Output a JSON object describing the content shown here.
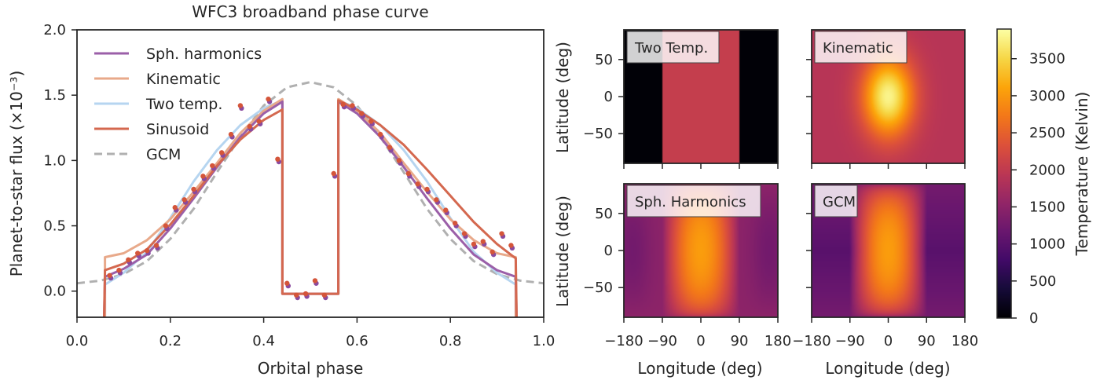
{
  "chart_data": [
    {
      "type": "line",
      "title": "WFC3 broadband phase curve",
      "xlabel": "Orbital phase",
      "ylabel": "Planet-to-star flux (×10⁻³)",
      "xlim": [
        0.0,
        1.0
      ],
      "ylim": [
        -0.2,
        2.0
      ],
      "xticks": [
        "0.0",
        "0.2",
        "0.4",
        "0.6",
        "0.8",
        "1.0"
      ],
      "yticks": [
        "0.0",
        "0.5",
        "1.0",
        "1.5",
        "2.0"
      ],
      "legend_position": "upper-left",
      "series": [
        {
          "name": "Sph. harmonics",
          "color": "#9b5fa8",
          "style": "solid",
          "x": [
            0.058,
            0.06,
            0.1,
            0.15,
            0.2,
            0.25,
            0.3,
            0.35,
            0.4,
            0.44,
            0.44,
            0.46,
            0.54,
            0.56,
            0.56,
            0.6,
            0.65,
            0.7,
            0.75,
            0.8,
            0.85,
            0.9,
            0.94,
            0.94,
            0.942
          ],
          "y": [
            -0.2,
            0.11,
            0.17,
            0.28,
            0.48,
            0.71,
            0.95,
            1.18,
            1.36,
            1.45,
            -0.02,
            -0.02,
            -0.02,
            -0.02,
            1.45,
            1.36,
            1.18,
            0.95,
            0.71,
            0.48,
            0.28,
            0.16,
            0.11,
            0.11,
            -0.2
          ]
        },
        {
          "name": "Kinematic",
          "color": "#e8a98a",
          "style": "solid",
          "x": [
            0.06,
            0.06,
            0.1,
            0.15,
            0.2,
            0.25,
            0.3,
            0.35,
            0.4,
            0.44,
            0.44,
            0.46,
            0.54,
            0.56,
            0.56,
            0.6,
            0.65,
            0.7,
            0.75,
            0.8,
            0.85,
            0.9,
            0.94,
            0.94
          ],
          "y": [
            -0.2,
            0.26,
            0.29,
            0.39,
            0.55,
            0.76,
            0.98,
            1.21,
            1.38,
            1.47,
            -0.02,
            -0.02,
            -0.02,
            -0.02,
            1.47,
            1.38,
            1.21,
            0.98,
            0.76,
            0.55,
            0.39,
            0.29,
            0.26,
            -0.2
          ]
        },
        {
          "name": "Two temp.",
          "color": "#b6d5f0",
          "style": "solid",
          "x": [
            0.06,
            0.06,
            0.1,
            0.15,
            0.2,
            0.25,
            0.3,
            0.35,
            0.4,
            0.44,
            0.44,
            0.46,
            0.54,
            0.56,
            0.56,
            0.6,
            0.65,
            0.7,
            0.75,
            0.8,
            0.85,
            0.9,
            0.94,
            0.94
          ],
          "y": [
            -0.2,
            0.05,
            0.14,
            0.3,
            0.56,
            0.84,
            1.08,
            1.27,
            1.4,
            1.46,
            -0.02,
            -0.02,
            -0.02,
            -0.02,
            1.46,
            1.4,
            1.27,
            1.08,
            0.84,
            0.56,
            0.3,
            0.14,
            0.05,
            -0.2
          ]
        },
        {
          "name": "Sinusoid",
          "color": "#d4684f",
          "style": "solid",
          "x": [
            0.058,
            0.06,
            0.1,
            0.15,
            0.2,
            0.25,
            0.3,
            0.35,
            0.4,
            0.44,
            0.44,
            0.46,
            0.54,
            0.56,
            0.56,
            0.6,
            0.65,
            0.7,
            0.75,
            0.8,
            0.85,
            0.9,
            0.94,
            0.94,
            0.942
          ],
          "y": [
            -0.2,
            0.16,
            0.21,
            0.32,
            0.51,
            0.73,
            0.96,
            1.16,
            1.31,
            1.39,
            -0.02,
            -0.02,
            -0.02,
            -0.02,
            1.46,
            1.39,
            1.27,
            1.12,
            0.93,
            0.73,
            0.53,
            0.36,
            0.25,
            0.25,
            -0.2
          ]
        },
        {
          "name": "GCM",
          "color": "#b0b0b0",
          "style": "dashed",
          "x": [
            0.0,
            0.05,
            0.1,
            0.15,
            0.2,
            0.25,
            0.3,
            0.35,
            0.4,
            0.45,
            0.5,
            0.55,
            0.6,
            0.65,
            0.7,
            0.75,
            0.8,
            0.85,
            0.9,
            0.95,
            1.0
          ],
          "y": [
            0.06,
            0.08,
            0.13,
            0.23,
            0.4,
            0.63,
            0.91,
            1.18,
            1.42,
            1.56,
            1.6,
            1.56,
            1.42,
            1.18,
            0.91,
            0.63,
            0.4,
            0.23,
            0.13,
            0.08,
            0.06
          ]
        }
      ],
      "observations": {
        "color_back": "#8a4a9e",
        "color_front": "#d4553a",
        "x": [
          0.07,
          0.09,
          0.11,
          0.13,
          0.15,
          0.17,
          0.19,
          0.21,
          0.23,
          0.25,
          0.27,
          0.29,
          0.31,
          0.33,
          0.35,
          0.37,
          0.39,
          0.41,
          0.43,
          0.45,
          0.47,
          0.49,
          0.51,
          0.53,
          0.55,
          0.57,
          0.59,
          0.61,
          0.63,
          0.65,
          0.67,
          0.69,
          0.71,
          0.73,
          0.75,
          0.77,
          0.79,
          0.81,
          0.83,
          0.85,
          0.87,
          0.89,
          0.91,
          0.93
        ],
        "y": [
          0.12,
          0.16,
          0.24,
          0.29,
          0.31,
          0.35,
          0.5,
          0.64,
          0.7,
          0.78,
          0.88,
          0.96,
          1.06,
          1.2,
          1.42,
          1.26,
          1.3,
          1.47,
          1.01,
          0.06,
          -0.03,
          -0.02,
          0.08,
          -0.03,
          0.9,
          1.43,
          1.42,
          1.36,
          1.3,
          1.2,
          1.1,
          1.0,
          0.9,
          0.82,
          0.78,
          0.7,
          0.62,
          0.52,
          0.44,
          0.36,
          0.38,
          0.3,
          0.44,
          0.35
        ]
      }
    },
    {
      "type": "heatmap",
      "panels": [
        {
          "label": "Two Temp.",
          "kind": "two_temp",
          "day_K": 2050,
          "night_K": 20
        },
        {
          "label": "Kinematic",
          "kind": "kinematic",
          "peak_K": 3800,
          "floor_K": 1900
        },
        {
          "label": "Sph. Harmonics",
          "kind": "sph",
          "peak_K": 3050,
          "floor_K": 1500
        },
        {
          "label": "GCM",
          "kind": "gcm",
          "peak_K": 3050,
          "floor_K": 1000
        }
      ],
      "xlabel": "Longitude (deg)",
      "ylabel": "Latitude (deg)",
      "xticks": [
        "−180",
        "−90",
        "0",
        "90",
        "180"
      ],
      "yticks": [
        "50",
        "0",
        "−50"
      ],
      "xlim": [
        -180,
        180
      ],
      "ylim": [
        -90,
        90
      ],
      "colorbar": {
        "label": "Temperature (Kelvin)",
        "ticks": [
          "0",
          "500",
          "1000",
          "1500",
          "2000",
          "2500",
          "3000",
          "3500"
        ],
        "range": [
          0,
          3900
        ],
        "colormap": "inferno"
      }
    }
  ]
}
